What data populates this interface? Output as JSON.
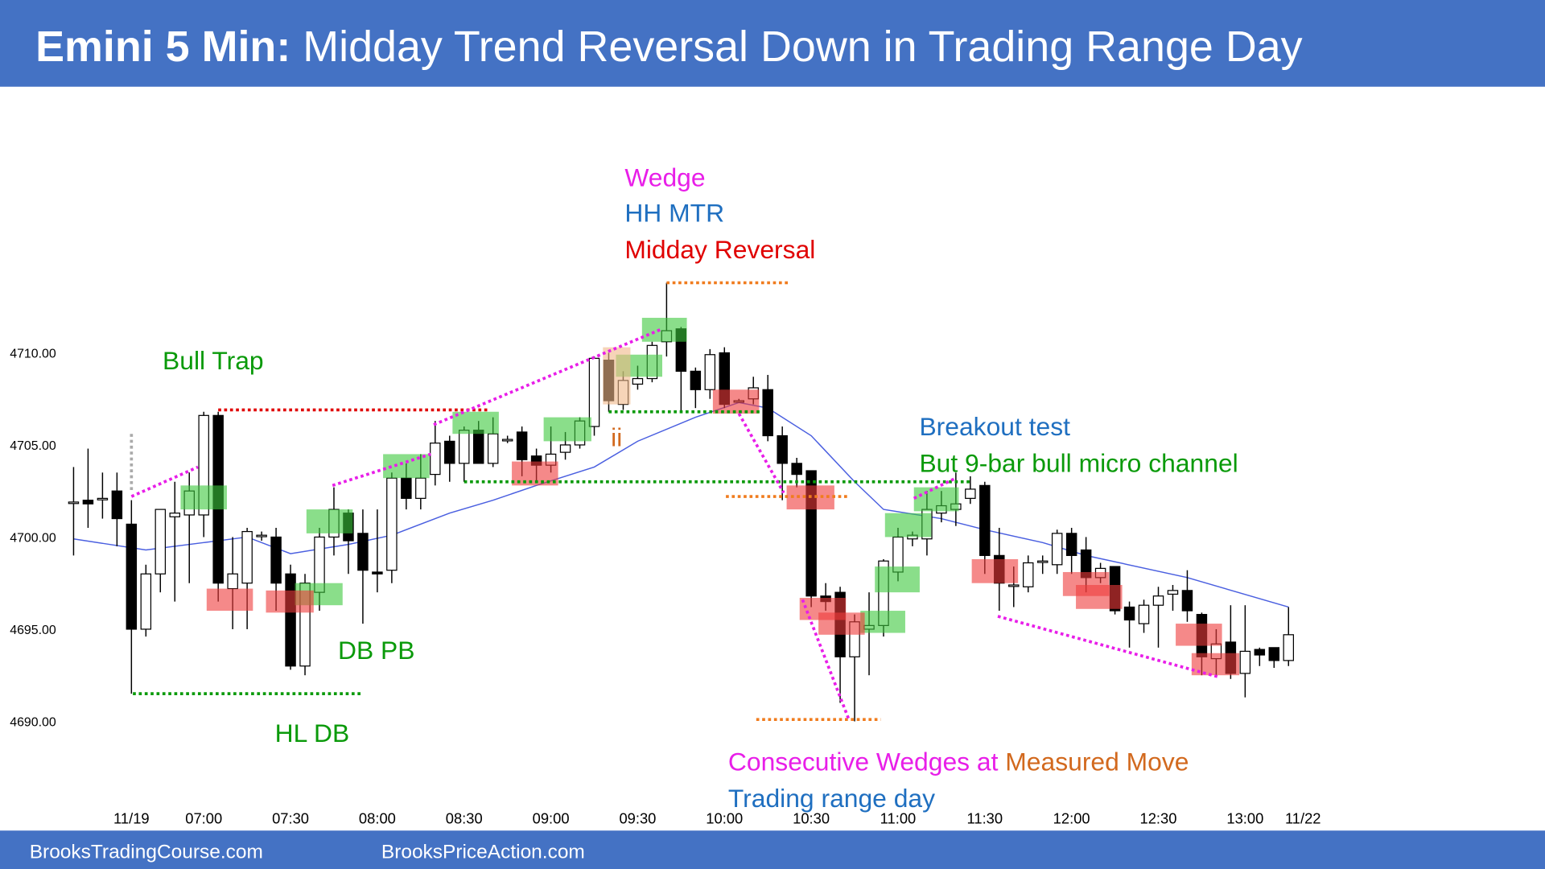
{
  "chart_data": {
    "type": "candlestick",
    "title": {
      "bold": "Emini 5 Min:",
      "rest": "Midday Trend Reversal Down in Trading Range Day"
    },
    "footer": [
      "BrooksTradingCourse.com",
      "BrooksPriceAction.com"
    ],
    "ylim": [
      4685.3,
      4723.8
    ],
    "yticks": [
      {
        "value": 4710,
        "label": "4710.00"
      },
      {
        "value": 4705,
        "label": "4705.00"
      },
      {
        "value": 4700,
        "label": "4700.00"
      },
      {
        "value": 4695,
        "label": "4695.00"
      },
      {
        "value": 4690,
        "label": "4690.00"
      }
    ],
    "xlim": [
      -1,
      86.2
    ],
    "xticks": [
      {
        "value": 4,
        "label": "11/19"
      },
      {
        "value": 9,
        "label": "07:00"
      },
      {
        "value": 15,
        "label": "07:30"
      },
      {
        "value": 21,
        "label": "08:00"
      },
      {
        "value": 27,
        "label": "08:30"
      },
      {
        "value": 33,
        "label": "09:00"
      },
      {
        "value": 39,
        "label": "09:30"
      },
      {
        "value": 45,
        "label": "10:00"
      },
      {
        "value": 51,
        "label": "10:30"
      },
      {
        "value": 57,
        "label": "11:00"
      },
      {
        "value": 63,
        "label": "11:30"
      },
      {
        "value": 69,
        "label": "12:00"
      },
      {
        "value": 75,
        "label": "12:30"
      },
      {
        "value": 81,
        "label": "13:00"
      },
      {
        "value": 85,
        "label": "11/22"
      }
    ],
    "grid": false,
    "candles": {
      "up_color": "#ffffff",
      "down_color": "#000000",
      "open": [
        4701.9,
        4702,
        4702.1,
        4702.5,
        4700.7,
        4695,
        4698,
        4701.1,
        4701.2,
        4701.2,
        4706.6,
        4697.2,
        4697.5,
        4700.1,
        4700,
        4698,
        4693,
        4697,
        4700,
        4701.3,
        4700.2,
        4698.1,
        4698.2,
        4703.2,
        4702.1,
        4703.4,
        4705.2,
        4704,
        4705.8,
        4704,
        4705.3,
        4705.7,
        4704.4,
        4703.9,
        4704.6,
        4705,
        4706,
        4709.6,
        4707.2,
        4708.3,
        4708.6,
        4710.6,
        4711.3,
        4709,
        4708,
        4710,
        4707.4,
        4707.5,
        4708,
        4705.5,
        4704,
        4703.6,
        4696.8,
        4697,
        4693.5,
        4695,
        4695.2,
        4698.1,
        4699.9,
        4699.9,
        4701.3,
        4701.5,
        4702.1,
        4702.8,
        4699,
        4697.4,
        4697.3,
        4698.7,
        4698.5,
        4700.2,
        4699.3,
        4697.8,
        4698.4,
        4696.2,
        4695.3,
        4696.3,
        4696.9,
        4697.1,
        4695.8,
        4693.4,
        4694.3,
        4692.6,
        4693.9,
        4694,
        4693.3
      ],
      "high": [
        4703.8,
        4704.8,
        4703.5,
        4703.5,
        4702,
        4698.5,
        4701.5,
        4703,
        4703.5,
        4706.8,
        4706.8,
        4700,
        4700.5,
        4700.3,
        4700.5,
        4698.5,
        4698,
        4700.5,
        4702.7,
        4701.5,
        4701.5,
        4701.5,
        4703.5,
        4704,
        4704.5,
        4706.3,
        4705.5,
        4706,
        4706.3,
        4706.5,
        4705.5,
        4706,
        4704.8,
        4706,
        4705.7,
        4706.5,
        4709.8,
        4710,
        4709,
        4709.3,
        4710.6,
        4713.8,
        4711.4,
        4709.2,
        4710.2,
        4710.3,
        4707.5,
        4708.7,
        4708.8,
        4706,
        4704.3,
        4703.6,
        4697.5,
        4697.3,
        4695.8,
        4697,
        4698.8,
        4700.5,
        4700.3,
        4702.5,
        4702.5,
        4703.5,
        4703.3,
        4703,
        4700.5,
        4698.4,
        4699,
        4699,
        4700.4,
        4700.5,
        4700,
        4698.6,
        4698.4,
        4696.5,
        4696.6,
        4697.3,
        4697.4,
        4698.2,
        4695.9,
        4695,
        4696.3,
        4696.3,
        4694,
        4694,
        4696.2
      ],
      "low": [
        4699,
        4700.5,
        4701,
        4699.5,
        4691.5,
        4694.6,
        4697,
        4696.5,
        4697.5,
        4700,
        4696.5,
        4695,
        4695,
        4699.8,
        4696,
        4692.8,
        4692.5,
        4696,
        4699,
        4698,
        4695.3,
        4697,
        4697.5,
        4701.5,
        4701.5,
        4702.8,
        4703,
        4703,
        4704,
        4703.8,
        4705.1,
        4703.3,
        4703,
        4703.5,
        4704.2,
        4704.8,
        4705.5,
        4706.8,
        4706.9,
        4708,
        4708.4,
        4709.8,
        4706.8,
        4707,
        4707.5,
        4707,
        4707.3,
        4707.2,
        4705.2,
        4702,
        4702.7,
        4696.2,
        4696,
        4691,
        4690,
        4692.5,
        4694.6,
        4697.6,
        4699.5,
        4699,
        4700.8,
        4700.6,
        4701.8,
        4698,
        4696,
        4696.2,
        4697,
        4698,
        4698,
        4698,
        4697,
        4697.5,
        4695.8,
        4694,
        4694.8,
        4694,
        4696,
        4695.4,
        4692.5,
        4692.4,
        4692.3,
        4691.3,
        4693,
        4692.9,
        4693
      ],
      "close": [
        4701.9,
        4701.8,
        4702.1,
        4701,
        4695,
        4698,
        4701.5,
        4701.3,
        4702.5,
        4706.6,
        4697.5,
        4698,
        4700.3,
        4700.1,
        4697.5,
        4693,
        4697.5,
        4700,
        4701.5,
        4699.8,
        4698.2,
        4698,
        4703.2,
        4702.1,
        4703.2,
        4705.1,
        4704,
        4705.8,
        4704,
        4705.6,
        4705.3,
        4704.2,
        4703.9,
        4704.5,
        4705,
        4706.3,
        4709.7,
        4707.4,
        4708.5,
        4708.6,
        4710.4,
        4711.2,
        4709,
        4708,
        4709.9,
        4707.2,
        4707.4,
        4708.1,
        4705.5,
        4704,
        4703.4,
        4696.8,
        4696.5,
        4693.5,
        4695.4,
        4695.2,
        4698.7,
        4700,
        4700.1,
        4701.5,
        4701.7,
        4701.8,
        4702.6,
        4699,
        4697.5,
        4697.4,
        4698.6,
        4698.7,
        4700.2,
        4699,
        4697.8,
        4698.3,
        4696,
        4695.5,
        4696.3,
        4696.8,
        4697.1,
        4696,
        4693.5,
        4694.2,
        4692.6,
        4693.8,
        4693.6,
        4693.3,
        4694.7
      ]
    },
    "ema": {
      "color": "#4a5fe0",
      "x": [
        0,
        5,
        9,
        12,
        15,
        19,
        22,
        26,
        29,
        32,
        36,
        39,
        43,
        46,
        48,
        51,
        54,
        56,
        60,
        63,
        67,
        70,
        77,
        84
      ],
      "values": [
        4699.9,
        4699.3,
        4699.7,
        4700,
        4699.1,
        4699.6,
        4700.1,
        4701.3,
        4702,
        4702.8,
        4703.8,
        4705.2,
        4706.5,
        4707.3,
        4707,
        4705.5,
        4703,
        4701.5,
        4701,
        4700.4,
        4699.7,
        4699,
        4697.8,
        4696.2
      ]
    },
    "zones": [
      {
        "x": [
          7.4,
          10.6
        ],
        "y": [
          4701.5,
          4702.8
        ],
        "color": "#3cc83c"
      },
      {
        "x": [
          15.3,
          18.6
        ],
        "y": [
          4696.3,
          4697.5
        ],
        "color": "#3cc83c"
      },
      {
        "x": [
          16.1,
          19.3
        ],
        "y": [
          4700.2,
          4701.5
        ],
        "color": "#3cc83c"
      },
      {
        "x": [
          21.4,
          24.6
        ],
        "y": [
          4703.2,
          4704.5
        ],
        "color": "#3cc83c"
      },
      {
        "x": [
          26.2,
          29.4
        ],
        "y": [
          4705.6,
          4706.8
        ],
        "color": "#3cc83c"
      },
      {
        "x": [
          32.5,
          35.8
        ],
        "y": [
          4705.2,
          4706.5
        ],
        "color": "#3cc83c"
      },
      {
        "x": [
          37.5,
          40.7
        ],
        "y": [
          4708.7,
          4709.9
        ],
        "color": "#3cc83c"
      },
      {
        "x": [
          39.3,
          42.4
        ],
        "y": [
          4710.6,
          4711.9
        ],
        "color": "#3cc83c"
      },
      {
        "x": [
          55.4,
          58.5
        ],
        "y": [
          4697,
          4698.4
        ],
        "color": "#3cc83c"
      },
      {
        "x": [
          56.1,
          59.3
        ],
        "y": [
          4700,
          4701.3
        ],
        "color": "#3cc83c"
      },
      {
        "x": [
          58.1,
          61.2
        ],
        "y": [
          4701.4,
          4702.7
        ],
        "color": "#3cc83c"
      },
      {
        "x": [
          54.4,
          57.5
        ],
        "y": [
          4694.8,
          4696
        ],
        "color": "#3cc83c"
      },
      {
        "x": [
          36.6,
          38.5
        ],
        "y": [
          4707.2,
          4710.3
        ],
        "color": "#f0b888"
      },
      {
        "x": [
          9.2,
          12.4
        ],
        "y": [
          4696,
          4697.2
        ],
        "color": "#ee3b3b"
      },
      {
        "x": [
          13.3,
          16.6
        ],
        "y": [
          4695.9,
          4697.1
        ],
        "color": "#ee3b3b"
      },
      {
        "x": [
          30.3,
          33.5
        ],
        "y": [
          4702.8,
          4704.1
        ],
        "color": "#ee3b3b"
      },
      {
        "x": [
          44.2,
          47.4
        ],
        "y": [
          4706.7,
          4708
        ],
        "color": "#ee3b3b"
      },
      {
        "x": [
          49.3,
          52.6
        ],
        "y": [
          4701.5,
          4702.8
        ],
        "color": "#ee3b3b"
      },
      {
        "x": [
          50.2,
          53.4
        ],
        "y": [
          4695.5,
          4696.7
        ],
        "color": "#ee3b3b"
      },
      {
        "x": [
          51.5,
          54.7
        ],
        "y": [
          4694.7,
          4695.9
        ],
        "color": "#ee3b3b"
      },
      {
        "x": [
          62.1,
          65.3
        ],
        "y": [
          4697.5,
          4698.8
        ],
        "color": "#ee3b3b"
      },
      {
        "x": [
          68.4,
          71.6
        ],
        "y": [
          4696.8,
          4698.1
        ],
        "color": "#ee3b3b"
      },
      {
        "x": [
          69.3,
          72.5
        ],
        "y": [
          4696.1,
          4697.4
        ],
        "color": "#ee3b3b"
      },
      {
        "x": [
          76.2,
          79.4
        ],
        "y": [
          4694.1,
          4695.3
        ],
        "color": "#ee3b3b"
      },
      {
        "x": [
          77.3,
          80.6
        ],
        "y": [
          4692.5,
          4693.7
        ],
        "color": "#ee3b3b"
      }
    ],
    "levels": [
      {
        "x": [
          10,
          28.8
        ],
        "y": [
          4706.9,
          4706.9
        ],
        "color": "#e00000"
      },
      {
        "x": [
          4.1,
          20
        ],
        "y": [
          4691.5,
          4691.5
        ],
        "color": "#0a9a0a"
      },
      {
        "x": [
          37,
          47.5
        ],
        "y": [
          4706.8,
          4706.8
        ],
        "color": "#0a9a0a"
      },
      {
        "x": [
          27,
          62
        ],
        "y": [
          4703,
          4703
        ],
        "color": "#0a9a0a"
      },
      {
        "x": [
          41,
          49.4
        ],
        "y": [
          4713.8,
          4713.8
        ],
        "color": "#f07c1e"
      },
      {
        "x": [
          45.1,
          53.6
        ],
        "y": [
          4702.2,
          4702.2
        ],
        "color": "#f07c1e"
      },
      {
        "x": [
          47.2,
          55.8
        ],
        "y": [
          4690.1,
          4690.1
        ],
        "color": "#f07c1e"
      },
      {
        "x": [
          4,
          4
        ],
        "y": [
          4705.6,
          4702.4
        ],
        "color": "#aaaaaa"
      },
      {
        "x": [
          4,
          8.6
        ],
        "y": [
          4702.2,
          4703.8
        ],
        "color": "#e81ee8"
      },
      {
        "x": [
          17.9,
          24.7
        ],
        "y": [
          4702.8,
          4704.5
        ],
        "color": "#e81ee8"
      },
      {
        "x": [
          24.9,
          40.7
        ],
        "y": [
          4706.1,
          4711.3
        ],
        "color": "#e81ee8"
      },
      {
        "x": [
          46,
          49.1
        ],
        "y": [
          4706.7,
          4702.4
        ],
        "color": "#e81ee8"
      },
      {
        "x": [
          50.4,
          53.6
        ],
        "y": [
          4696.6,
          4690.1
        ],
        "color": "#e81ee8"
      },
      {
        "x": [
          58.1,
          61
        ],
        "y": [
          4702.1,
          4703.2
        ],
        "color": "#e81ee8"
      },
      {
        "x": [
          63.9,
          79.2
        ],
        "y": [
          4695.7,
          4692.4
        ],
        "color": "#e81ee8"
      }
    ],
    "annotations": {
      "wedge": "Wedge",
      "hh_mtr": "HH MTR",
      "midday": "Midday Reversal",
      "bull_trap": "Bull Trap",
      "db_pb": "DB PB",
      "hl_db": "HL DB",
      "ii": "ii",
      "breakout": "Breakout test",
      "micro": "But 9-bar bull micro channel",
      "consecutive": "Consecutive Wedges at ",
      "measured": "Measured Move",
      "range_day": "Trading range day"
    }
  }
}
